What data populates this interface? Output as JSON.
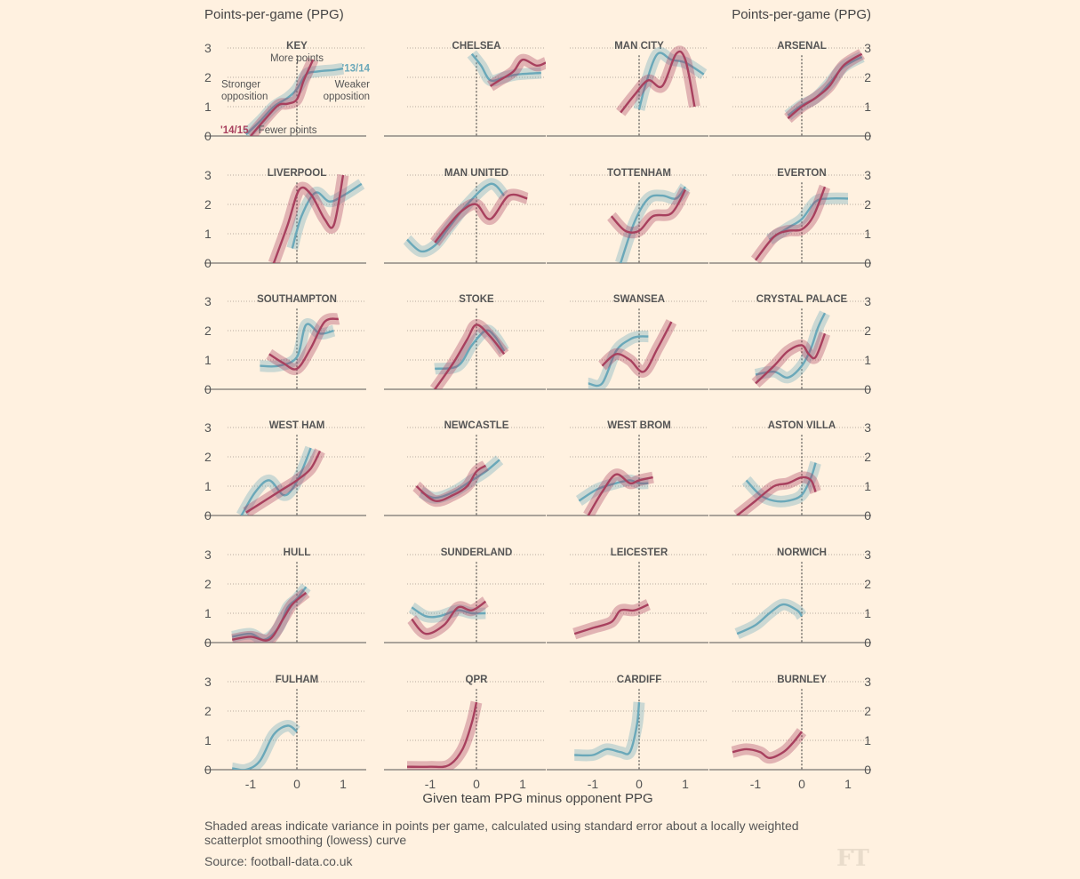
{
  "ylabel_left": "Points-per-game (PPG)",
  "ylabel_right": "Points-per-game (PPG)",
  "xlabel": "Given team PPG minus opponent PPG",
  "footnote": "Shaded areas indicate variance in points per game, calculated using standard error about a locally weighted scatterplot smoothing (lowess) curve",
  "source": "Source: football-data.co.uk",
  "logo": "FT",
  "colors": {
    "background": "#fff1e0",
    "s1314": "#6aa8b9",
    "s1415": "#a8405e"
  },
  "key_annotations": {
    "more": "More points",
    "fewer": "Fewer points",
    "stronger_1": "Stronger",
    "stronger_2": "opposition",
    "weaker_1": "Weaker",
    "weaker_2": "opposition",
    "label_1314": "'13/14",
    "label_1415": "'14/15"
  },
  "chart_data": {
    "type": "line",
    "layout": "small multiples, 6 rows x 4 columns",
    "x_ticks": [
      -1,
      0,
      1
    ],
    "y_ticks": [
      0,
      1,
      2,
      3
    ],
    "xlim": [
      -2,
      1.5
    ],
    "ylim": [
      0,
      3
    ],
    "bands": "shaded standard error about each curve",
    "series_names": [
      "'13/14",
      "'14/15"
    ],
    "panels": [
      {
        "title": "KEY",
        "s1314": [
          [
            -1.1,
            0.05
          ],
          [
            -0.8,
            0.5
          ],
          [
            -0.5,
            1.0
          ],
          [
            -0.2,
            1.3
          ],
          [
            0,
            1.6
          ],
          [
            0.2,
            2.1
          ],
          [
            0.45,
            2.2
          ],
          [
            0.8,
            2.25
          ],
          [
            1.0,
            2.3
          ]
        ],
        "s1415": [
          [
            -1.0,
            0
          ],
          [
            -0.7,
            0.55
          ],
          [
            -0.4,
            1.05
          ],
          [
            -0.2,
            1.1
          ],
          [
            0,
            1.25
          ],
          [
            0.15,
            1.9
          ],
          [
            0.35,
            2.6
          ]
        ]
      },
      {
        "title": "CHELSEA",
        "s1314": [
          [
            -0.1,
            2.8
          ],
          [
            0.1,
            2.4
          ],
          [
            0.3,
            1.9
          ],
          [
            0.6,
            2.0
          ],
          [
            0.9,
            2.1
          ],
          [
            1.4,
            2.15
          ]
        ],
        "s1415": [
          [
            0.3,
            1.7
          ],
          [
            0.5,
            1.9
          ],
          [
            0.8,
            2.2
          ],
          [
            1.0,
            2.6
          ],
          [
            1.3,
            2.4
          ],
          [
            1.5,
            2.5
          ]
        ]
      },
      {
        "title": "MAN CITY",
        "s1314": [
          [
            0,
            0.9
          ],
          [
            0.15,
            1.8
          ],
          [
            0.4,
            2.8
          ],
          [
            0.7,
            2.6
          ],
          [
            1.0,
            2.5
          ],
          [
            1.4,
            2.1
          ]
        ],
        "s1415": [
          [
            -0.4,
            0.8
          ],
          [
            -0.1,
            1.4
          ],
          [
            0.2,
            1.9
          ],
          [
            0.5,
            1.7
          ],
          [
            0.8,
            2.8
          ],
          [
            1.0,
            2.6
          ],
          [
            1.2,
            1.0
          ]
        ]
      },
      {
        "title": "ARSENAL",
        "s1314": [
          [
            -0.3,
            0.7
          ],
          [
            0,
            1.05
          ],
          [
            0.3,
            1.3
          ],
          [
            0.6,
            1.8
          ],
          [
            0.9,
            2.35
          ],
          [
            1.3,
            2.7
          ]
        ],
        "s1415": [
          [
            -0.3,
            0.6
          ],
          [
            0,
            1.0
          ],
          [
            0.3,
            1.3
          ],
          [
            0.6,
            1.7
          ],
          [
            0.9,
            2.4
          ],
          [
            1.3,
            2.8
          ]
        ]
      },
      {
        "title": "LIVERPOOL",
        "s1314": [
          [
            -0.1,
            0.5
          ],
          [
            0.1,
            1.6
          ],
          [
            0.4,
            2.4
          ],
          [
            0.7,
            2.1
          ],
          [
            1.0,
            2.3
          ],
          [
            1.4,
            2.7
          ]
        ],
        "s1415": [
          [
            -0.5,
            0
          ],
          [
            -0.2,
            1.3
          ],
          [
            0.05,
            2.5
          ],
          [
            0.3,
            2.35
          ],
          [
            0.6,
            1.5
          ],
          [
            0.8,
            1.3
          ],
          [
            1.0,
            3.0
          ]
        ]
      },
      {
        "title": "MAN UNITED",
        "s1314": [
          [
            -1.5,
            0.8
          ],
          [
            -1.2,
            0.4
          ],
          [
            -0.9,
            0.6
          ],
          [
            -0.6,
            1.2
          ],
          [
            -0.2,
            2.0
          ],
          [
            0.3,
            2.7
          ],
          [
            0.6,
            2.3
          ]
        ],
        "s1415": [
          [
            -0.9,
            0.7
          ],
          [
            -0.6,
            1.3
          ],
          [
            -0.3,
            1.8
          ],
          [
            0,
            2.0
          ],
          [
            0.3,
            1.5
          ],
          [
            0.7,
            2.3
          ],
          [
            1.1,
            2.2
          ]
        ]
      },
      {
        "title": "TOTTENHAM",
        "s1314": [
          [
            -0.4,
            0
          ],
          [
            -0.1,
            1.4
          ],
          [
            0.2,
            2.2
          ],
          [
            0.5,
            2.3
          ],
          [
            0.8,
            2.2
          ],
          [
            1.0,
            2.6
          ]
        ],
        "s1415": [
          [
            -0.6,
            1.6
          ],
          [
            -0.3,
            1.1
          ],
          [
            0,
            1.1
          ],
          [
            0.3,
            1.6
          ],
          [
            0.7,
            1.7
          ],
          [
            1.0,
            2.5
          ]
        ]
      },
      {
        "title": "EVERTON",
        "s1314": [
          [
            -0.7,
            0.8
          ],
          [
            -0.3,
            1.2
          ],
          [
            0,
            1.5
          ],
          [
            0.3,
            2.1
          ],
          [
            0.6,
            2.2
          ],
          [
            1.0,
            2.2
          ]
        ],
        "s1415": [
          [
            -1.0,
            0.1
          ],
          [
            -0.6,
            0.9
          ],
          [
            -0.3,
            1.1
          ],
          [
            0,
            1.15
          ],
          [
            0.25,
            1.6
          ],
          [
            0.5,
            2.6
          ]
        ]
      },
      {
        "title": "SOUTHAMPTON",
        "s1314": [
          [
            -0.8,
            0.8
          ],
          [
            -0.4,
            0.8
          ],
          [
            0,
            1.1
          ],
          [
            0.2,
            2.2
          ],
          [
            0.5,
            1.9
          ],
          [
            0.8,
            2.0
          ]
        ],
        "s1415": [
          [
            -0.6,
            1.2
          ],
          [
            -0.3,
            0.9
          ],
          [
            0,
            0.7
          ],
          [
            0.3,
            1.4
          ],
          [
            0.6,
            2.3
          ],
          [
            0.9,
            2.4
          ]
        ]
      },
      {
        "title": "STOKE",
        "s1314": [
          [
            -0.9,
            0.7
          ],
          [
            -0.4,
            0.8
          ],
          [
            -0.1,
            1.5
          ],
          [
            0.2,
            2.0
          ],
          [
            0.4,
            1.8
          ],
          [
            0.6,
            1.3
          ]
        ],
        "s1415": [
          [
            -0.9,
            0
          ],
          [
            -0.5,
            0.9
          ],
          [
            -0.2,
            1.7
          ],
          [
            0,
            2.2
          ],
          [
            0.3,
            1.8
          ],
          [
            0.6,
            1.2
          ]
        ]
      },
      {
        "title": "SWANSEA",
        "s1314": [
          [
            -1.1,
            0.2
          ],
          [
            -0.8,
            0.2
          ],
          [
            -0.5,
            1.3
          ],
          [
            -0.2,
            1.7
          ],
          [
            0,
            1.8
          ],
          [
            0.2,
            1.8
          ]
        ],
        "s1415": [
          [
            -0.8,
            0.8
          ],
          [
            -0.5,
            1.2
          ],
          [
            -0.2,
            1.0
          ],
          [
            0.1,
            0.6
          ],
          [
            0.4,
            1.4
          ],
          [
            0.7,
            2.3
          ]
        ]
      },
      {
        "title": "CRYSTAL PALACE",
        "s1314": [
          [
            -1.0,
            0.5
          ],
          [
            -0.6,
            0.6
          ],
          [
            -0.3,
            0.4
          ],
          [
            0,
            0.8
          ],
          [
            0.2,
            1.4
          ],
          [
            0.35,
            2.1
          ],
          [
            0.5,
            2.6
          ]
        ],
        "s1415": [
          [
            -1.0,
            0.2
          ],
          [
            -0.6,
            0.8
          ],
          [
            -0.3,
            1.3
          ],
          [
            0,
            1.5
          ],
          [
            0.15,
            1.2
          ],
          [
            0.3,
            1.1
          ],
          [
            0.5,
            1.9
          ]
        ]
      },
      {
        "title": "WEST HAM",
        "s1314": [
          [
            -1.2,
            0
          ],
          [
            -0.9,
            0.8
          ],
          [
            -0.6,
            1.2
          ],
          [
            -0.3,
            0.7
          ],
          [
            -0.1,
            0.9
          ],
          [
            0.1,
            1.5
          ],
          [
            0.3,
            2.3
          ]
        ],
        "s1415": [
          [
            -1.1,
            0.1
          ],
          [
            -0.7,
            0.5
          ],
          [
            -0.3,
            0.9
          ],
          [
            0,
            1.2
          ],
          [
            0.3,
            1.6
          ],
          [
            0.5,
            2.2
          ]
        ]
      },
      {
        "title": "NEWCASTLE",
        "s1314": [
          [
            -1.2,
            0.8
          ],
          [
            -0.9,
            0.6
          ],
          [
            -0.5,
            0.8
          ],
          [
            -0.1,
            1.2
          ],
          [
            0.2,
            1.5
          ],
          [
            0.5,
            1.9
          ]
        ],
        "s1415": [
          [
            -1.3,
            1.0
          ],
          [
            -0.9,
            0.5
          ],
          [
            -0.5,
            0.7
          ],
          [
            -0.2,
            1.0
          ],
          [
            0,
            1.5
          ],
          [
            0.2,
            1.7
          ]
        ]
      },
      {
        "title": "WEST BROM",
        "s1314": [
          [
            -1.3,
            0.5
          ],
          [
            -0.9,
            0.9
          ],
          [
            -0.5,
            1.1
          ],
          [
            -0.2,
            1.2
          ],
          [
            0,
            1.1
          ],
          [
            0.2,
            1.1
          ]
        ],
        "s1415": [
          [
            -1.1,
            0
          ],
          [
            -0.8,
            0.8
          ],
          [
            -0.5,
            1.4
          ],
          [
            -0.2,
            1.1
          ],
          [
            0,
            1.2
          ],
          [
            0.3,
            1.3
          ]
        ]
      },
      {
        "title": "ASTON VILLA",
        "s1314": [
          [
            -1.2,
            1.2
          ],
          [
            -0.9,
            0.7
          ],
          [
            -0.6,
            0.5
          ],
          [
            -0.3,
            0.5
          ],
          [
            0,
            0.7
          ],
          [
            0.2,
            1.3
          ],
          [
            0.3,
            1.8
          ]
        ],
        "s1415": [
          [
            -1.4,
            0
          ],
          [
            -1.0,
            0.5
          ],
          [
            -0.6,
            1.0
          ],
          [
            -0.3,
            1.1
          ],
          [
            0,
            1.3
          ],
          [
            0.2,
            1.2
          ],
          [
            0.3,
            0.8
          ]
        ]
      },
      {
        "title": "HULL",
        "s1314": [
          [
            -1.4,
            0.2
          ],
          [
            -1.0,
            0.3
          ],
          [
            -0.7,
            0.1
          ],
          [
            -0.4,
            0.5
          ],
          [
            -0.2,
            1.2
          ],
          [
            0,
            1.5
          ],
          [
            0.2,
            1.9
          ]
        ],
        "s1415": [
          [
            -1.4,
            0.1
          ],
          [
            -1.0,
            0.2
          ],
          [
            -0.6,
            0.1
          ],
          [
            -0.3,
            0.8
          ],
          [
            -0.1,
            1.3
          ],
          [
            0.2,
            1.7
          ]
        ]
      },
      {
        "title": "SUNDERLAND",
        "s1314": [
          [
            -1.4,
            1.2
          ],
          [
            -1.1,
            0.9
          ],
          [
            -0.8,
            0.9
          ],
          [
            -0.4,
            1.1
          ],
          [
            -0.1,
            1.0
          ],
          [
            0.2,
            1.0
          ]
        ],
        "s1415": [
          [
            -1.4,
            0.8
          ],
          [
            -1.1,
            0.3
          ],
          [
            -0.7,
            0.6
          ],
          [
            -0.4,
            1.2
          ],
          [
            -0.1,
            1.1
          ],
          [
            0.2,
            1.4
          ]
        ]
      },
      {
        "title": "LEICESTER",
        "s1314": [],
        "s1415": [
          [
            -1.4,
            0.3
          ],
          [
            -1.0,
            0.5
          ],
          [
            -0.6,
            0.7
          ],
          [
            -0.4,
            1.1
          ],
          [
            -0.1,
            1.1
          ],
          [
            0.2,
            1.3
          ]
        ]
      },
      {
        "title": "NORWICH",
        "s1314": [
          [
            -1.4,
            0.3
          ],
          [
            -1.0,
            0.6
          ],
          [
            -0.7,
            1.0
          ],
          [
            -0.4,
            1.3
          ],
          [
            -0.1,
            1.1
          ],
          [
            0,
            0.9
          ]
        ],
        "s1415": []
      },
      {
        "title": "FULHAM",
        "s1314": [
          [
            -1.4,
            0.05
          ],
          [
            -1.1,
            0
          ],
          [
            -0.8,
            0.3
          ],
          [
            -0.5,
            1.2
          ],
          [
            -0.2,
            1.5
          ],
          [
            0,
            1.3
          ]
        ],
        "s1415": []
      },
      {
        "title": "QPR",
        "s1314": [],
        "s1415": [
          [
            -1.5,
            0.1
          ],
          [
            -1.0,
            0.1
          ],
          [
            -0.6,
            0.15
          ],
          [
            -0.3,
            0.7
          ],
          [
            -0.1,
            1.6
          ],
          [
            0,
            2.3
          ]
        ]
      },
      {
        "title": "CARDIFF",
        "s1314": [
          [
            -1.4,
            0.5
          ],
          [
            -1.0,
            0.5
          ],
          [
            -0.7,
            0.7
          ],
          [
            -0.4,
            0.6
          ],
          [
            -0.2,
            0.6
          ],
          [
            -0.05,
            1.5
          ],
          [
            0,
            2.3
          ]
        ],
        "s1415": []
      },
      {
        "title": "BURNLEY",
        "s1314": [],
        "s1415": [
          [
            -1.5,
            0.6
          ],
          [
            -1.2,
            0.7
          ],
          [
            -0.9,
            0.6
          ],
          [
            -0.7,
            0.4
          ],
          [
            -0.4,
            0.6
          ],
          [
            -0.2,
            0.9
          ],
          [
            0,
            1.3
          ]
        ]
      }
    ]
  }
}
